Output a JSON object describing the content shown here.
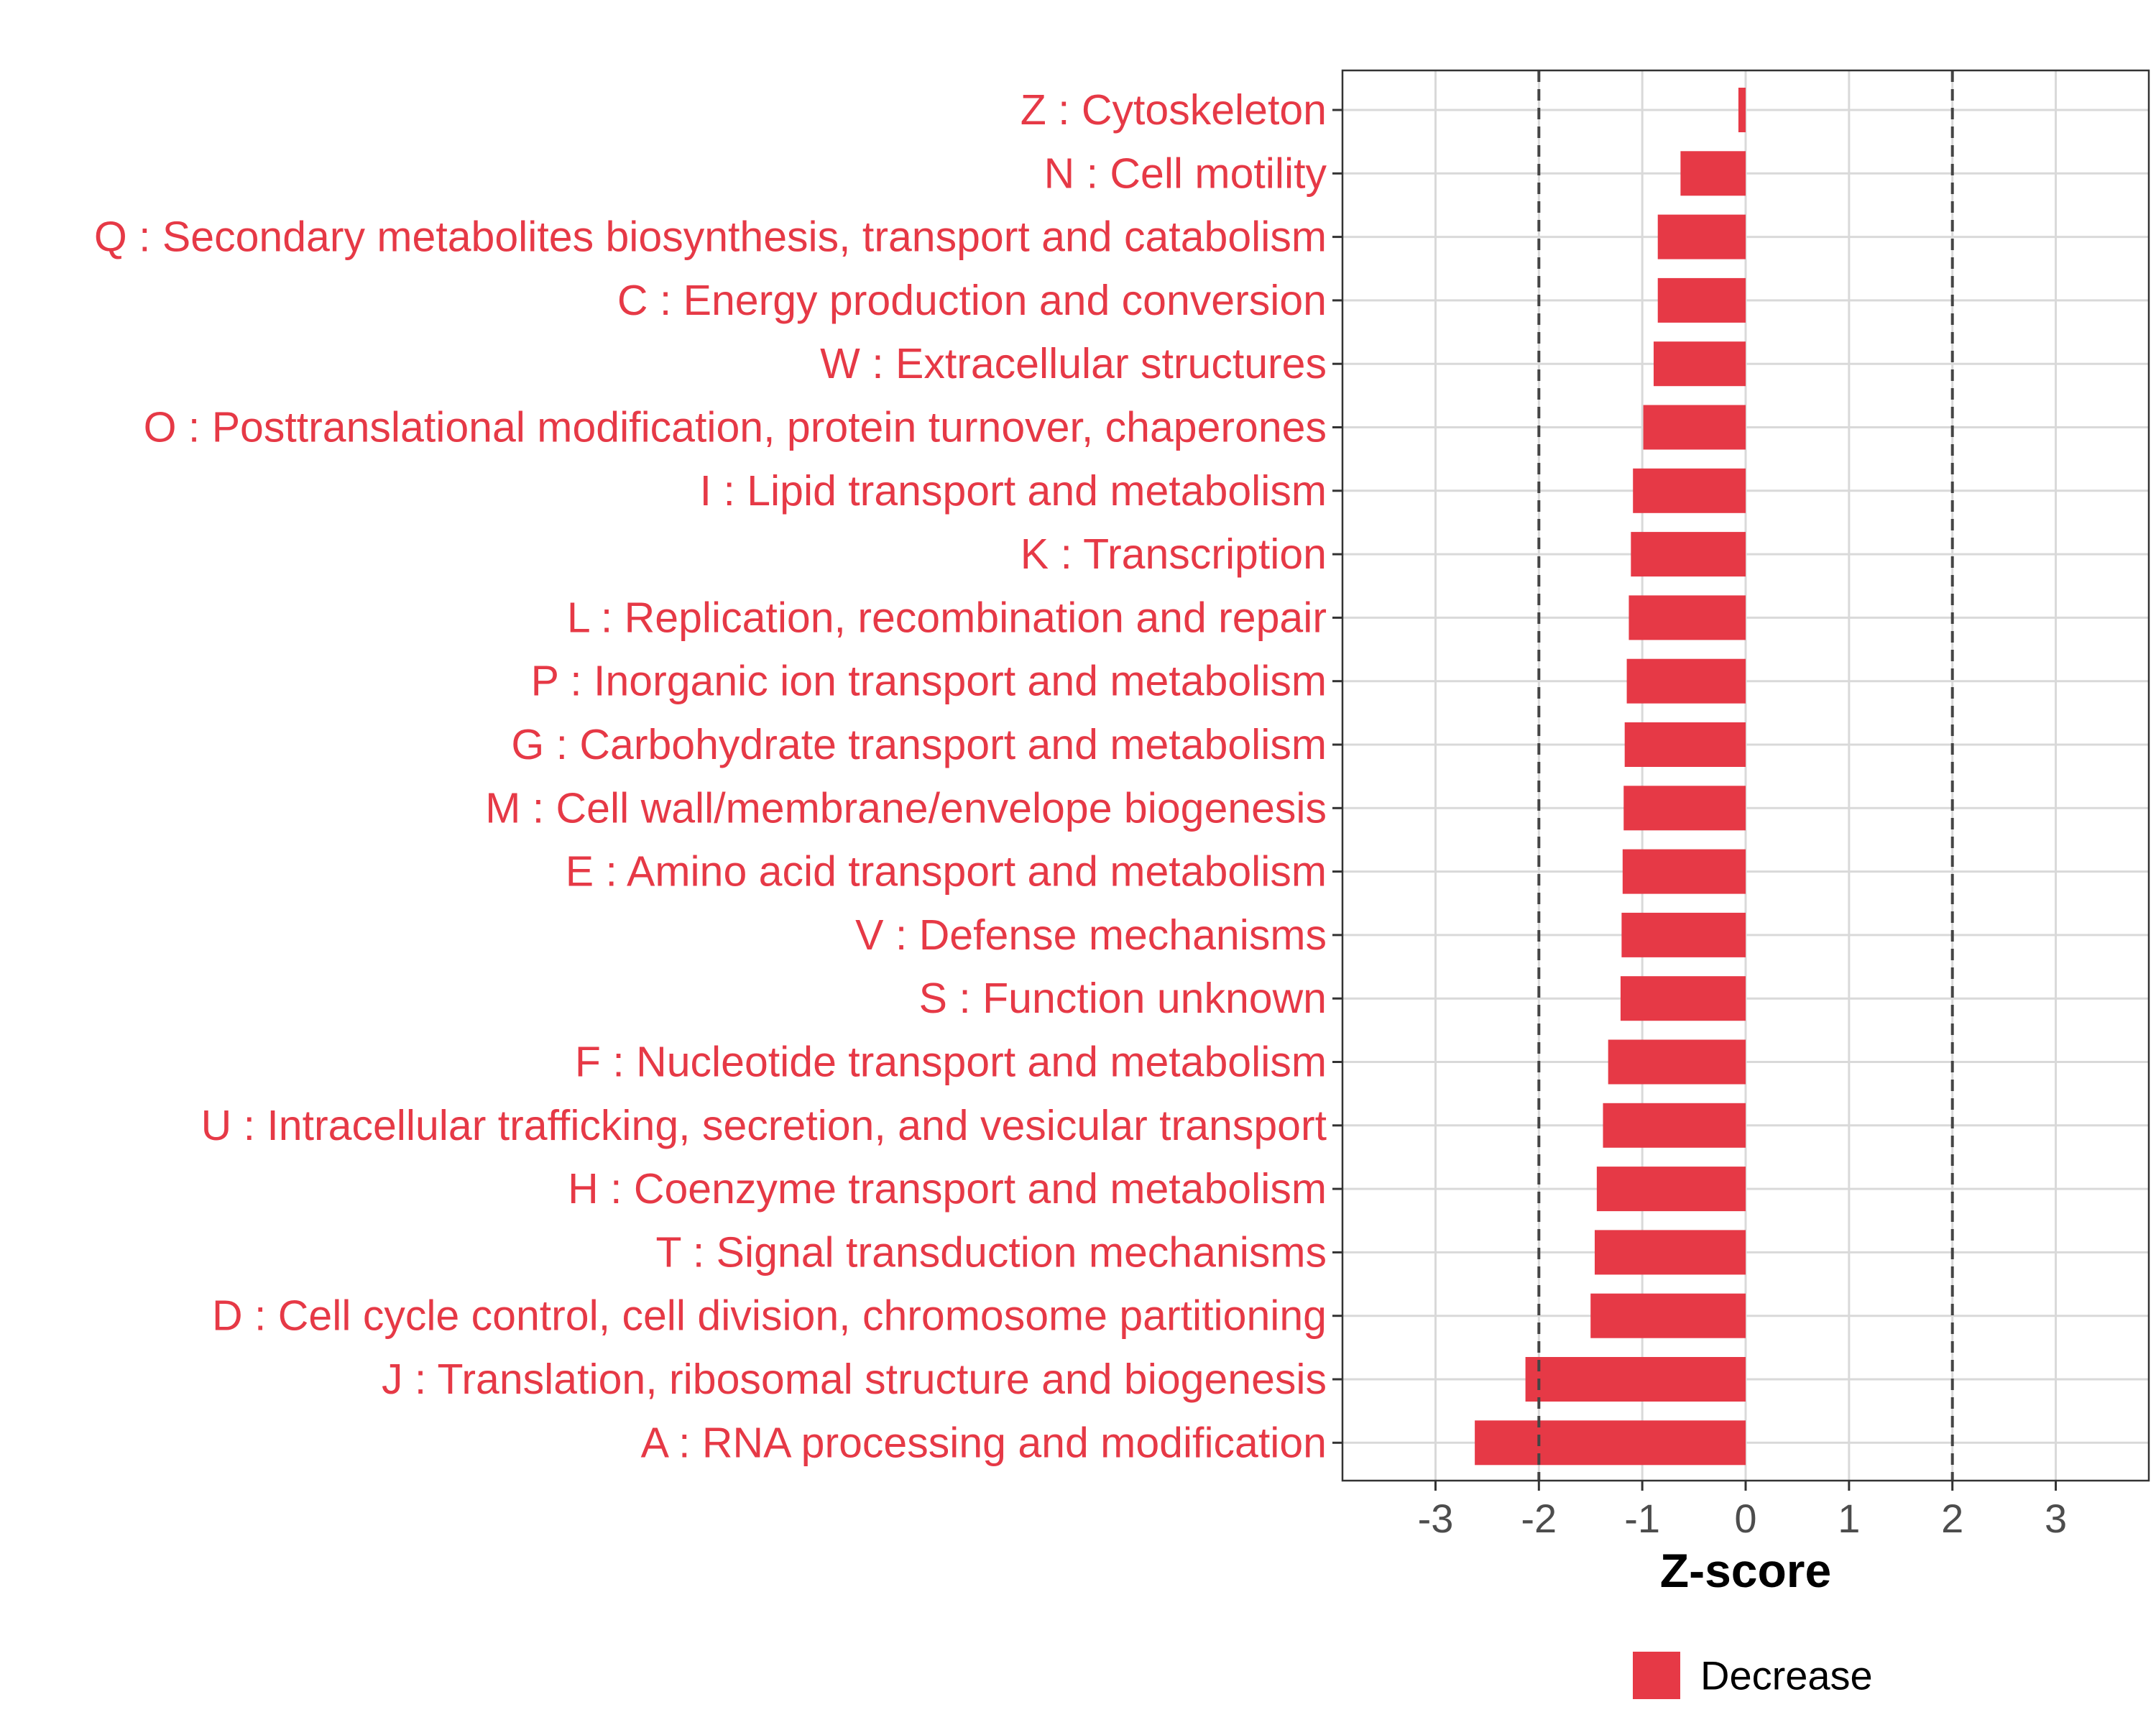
{
  "chart_data": {
    "type": "bar",
    "orientation": "horizontal",
    "title": "",
    "xlabel": "Z-score",
    "ylabel": "",
    "xlim": [
      -3.9,
      3.9
    ],
    "xticks": [
      -3,
      -2,
      -1,
      0,
      1,
      2,
      3
    ],
    "xtick_labels": [
      "-3",
      "-2",
      "-1",
      "0",
      "1",
      "2",
      "3"
    ],
    "reference_lines": [
      -2,
      2
    ],
    "grid": true,
    "categories": [
      "Z : Cytoskeleton",
      "N : Cell motility",
      "Q : Secondary metabolites biosynthesis, transport and catabolism",
      "C : Energy production and conversion",
      "W : Extracellular structures",
      "O : Posttranslational modification, protein turnover, chaperones",
      "I : Lipid transport and metabolism",
      "K : Transcription",
      "L : Replication, recombination and repair",
      "P : Inorganic ion transport and metabolism",
      "G : Carbohydrate transport and metabolism",
      "M : Cell wall/membrane/envelope biogenesis",
      "E : Amino acid transport and metabolism",
      "V : Defense mechanisms",
      "S : Function unknown",
      "F : Nucleotide transport and metabolism",
      "U : Intracellular trafficking, secretion, and vesicular transport",
      "H : Coenzyme transport and metabolism",
      "T : Signal transduction mechanisms",
      "D : Cell cycle control, cell division, chromosome partitioning",
      "J : Translation, ribosomal structure and biogenesis",
      "A : RNA processing and modification"
    ],
    "series": [
      {
        "name": "Decrease",
        "color": "#e63946",
        "values": [
          -0.07,
          -0.63,
          -0.85,
          -0.85,
          -0.89,
          -0.99,
          -1.09,
          -1.11,
          -1.13,
          -1.15,
          -1.17,
          -1.18,
          -1.19,
          -1.2,
          -1.21,
          -1.33,
          -1.38,
          -1.44,
          -1.46,
          -1.5,
          -2.13,
          -2.62
        ]
      }
    ],
    "legend": {
      "position": "bottom",
      "entries": [
        "Decrease"
      ]
    }
  }
}
